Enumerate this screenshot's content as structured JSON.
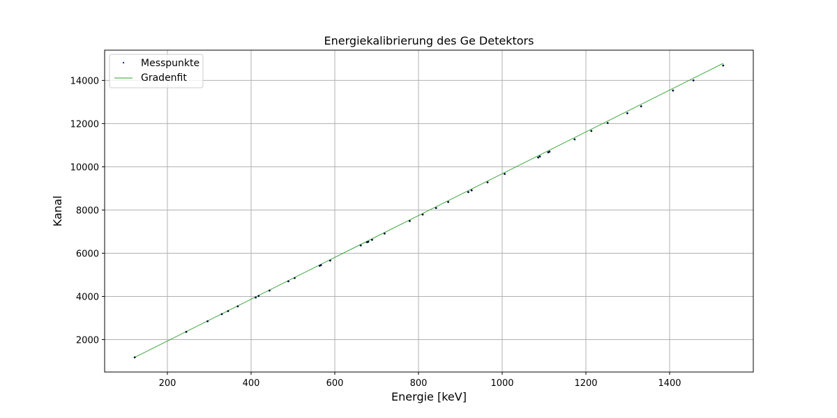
{
  "chart_data": {
    "type": "scatter",
    "title": "Energiekalibrierung des Ge Detektors",
    "xlabel": "Energie [keV]",
    "ylabel": "Kanal",
    "xlim": [
      50,
      1600
    ],
    "ylim": [
      500,
      15400
    ],
    "xticks": [
      200,
      400,
      600,
      800,
      1000,
      1200,
      1400
    ],
    "yticks": [
      2000,
      4000,
      6000,
      8000,
      10000,
      12000,
      14000
    ],
    "grid": true,
    "legend_position": "top-left",
    "colors": {
      "points": "#1f3b99",
      "fit": "#2ca02c",
      "grid": "#b0b0b0"
    },
    "series": [
      {
        "name": "Messpunkte",
        "kind": "points",
        "x": [
          122,
          245,
          296,
          330,
          345,
          368,
          411,
          418,
          444,
          489,
          504,
          564,
          567,
          589,
          662,
          677,
          680,
          689,
          719,
          779,
          810,
          842,
          871,
          919,
          927,
          965,
          1006,
          1086,
          1090,
          1110,
          1113,
          1173,
          1213,
          1252,
          1299,
          1332,
          1408,
          1457,
          1528
        ],
        "y": [
          1180,
          2360,
          2850,
          3180,
          3320,
          3540,
          3950,
          4020,
          4270,
          4700,
          4850,
          5420,
          5450,
          5660,
          6360,
          6510,
          6530,
          6620,
          6910,
          7490,
          7790,
          8090,
          8370,
          8830,
          8910,
          9280,
          9670,
          10430,
          10480,
          10670,
          10700,
          11270,
          11660,
          12030,
          12480,
          12800,
          13530,
          14000,
          14690
        ]
      },
      {
        "name": "Gradenfit",
        "kind": "line",
        "x": [
          122,
          1528
        ],
        "y": [
          1180,
          14790
        ]
      }
    ]
  }
}
